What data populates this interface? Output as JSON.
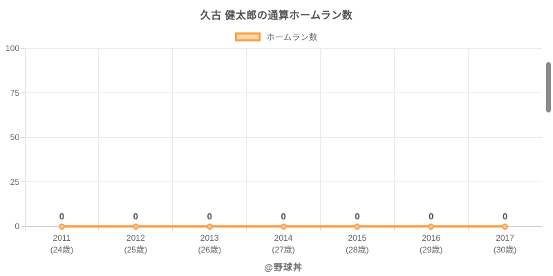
{
  "header": {
    "title": "久古 健太郎の通算ホームラン数"
  },
  "legend": {
    "items": [
      {
        "label": "ホームラン数",
        "swatch_fill": "#fcd7a8",
        "swatch_border": "#f8a049"
      }
    ]
  },
  "footer": {
    "credit": "@野球丼"
  },
  "colors": {
    "background": "#ffffff",
    "grid": "#e9e9e9",
    "axis_x": "#c6c6c6",
    "axis_y": "#d9d9d9",
    "tick": "#d2d2d2",
    "tick_label": "#666666",
    "title": "#4f4f4f",
    "data_label": "#545454",
    "scrollbar": "#8a8a8a"
  },
  "chart_data": {
    "type": "line",
    "title": "久古 健太郎の通算ホームラン数",
    "categories": [
      {
        "year": "2011",
        "age": "(24歳)"
      },
      {
        "year": "2012",
        "age": "(25歳)"
      },
      {
        "year": "2013",
        "age": "(26歳)"
      },
      {
        "year": "2014",
        "age": "(27歳)"
      },
      {
        "year": "2015",
        "age": "(28歳)"
      },
      {
        "year": "2016",
        "age": "(29歳)"
      },
      {
        "year": "2017",
        "age": "(30歳)"
      }
    ],
    "series": [
      {
        "name": "ホームラン数",
        "values": [
          0,
          0,
          0,
          0,
          0,
          0,
          0
        ],
        "color": "#f8a049",
        "point_fill": "#fbc88f"
      }
    ],
    "xlabel": "",
    "ylabel": "",
    "ylim": [
      0,
      100
    ],
    "yticks": [
      0,
      25,
      50,
      75,
      100
    ],
    "grid": true,
    "legend_position": "top",
    "show_data_labels": true
  }
}
